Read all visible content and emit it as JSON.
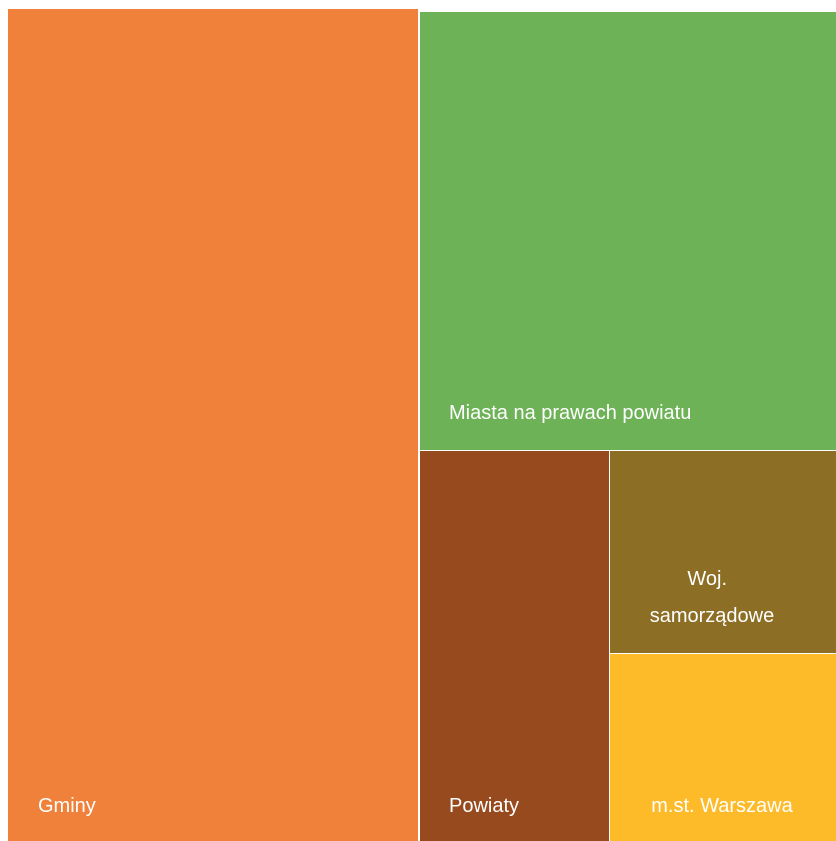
{
  "chart_data": {
    "type": "treemap",
    "title": "",
    "tiles": [
      {
        "label": "Gminy",
        "lines": [
          "Gminy"
        ],
        "color": "#F0813A"
      },
      {
        "label": "Miasta na prawach powiatu",
        "lines": [
          "Miasta na prawach powiatu"
        ],
        "color": "#6DB257"
      },
      {
        "label": "Powiaty",
        "lines": [
          "Powiaty"
        ],
        "color": "#974A1E"
      },
      {
        "label": "Woj. samorządowe",
        "lines": [
          "Woj.",
          "samorządowe"
        ],
        "color": "#8C6E24"
      },
      {
        "label": "m.st. Warszawa",
        "lines": [
          "m.st. Warszawa"
        ],
        "color": "#FDBB2A"
      }
    ]
  }
}
